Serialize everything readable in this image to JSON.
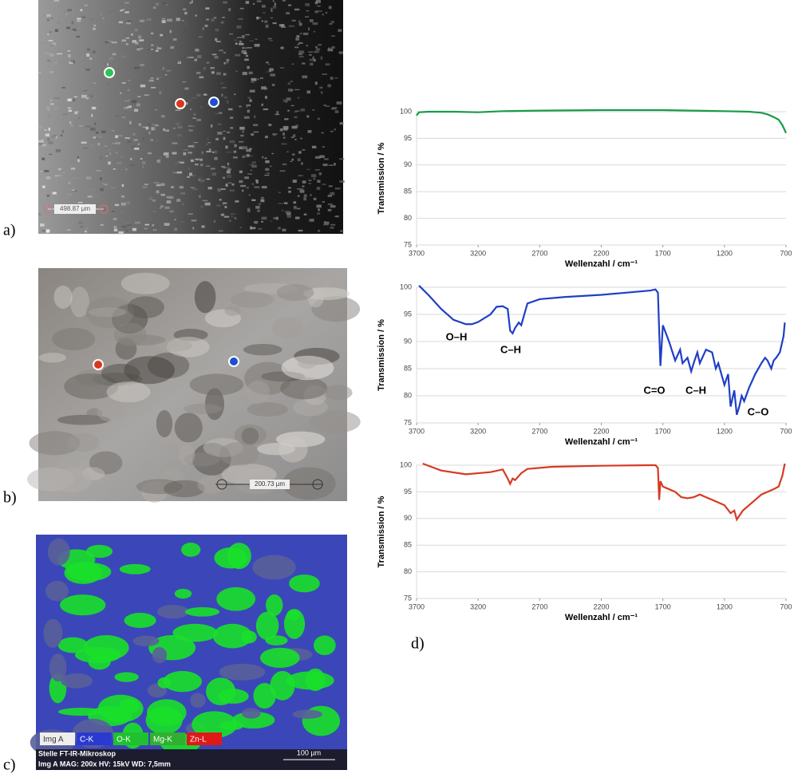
{
  "panel_labels": {
    "a": "a)",
    "b": "b)",
    "c": "c)",
    "d": "d)"
  },
  "images": {
    "a": {
      "scale_label": "498.87 µm"
    },
    "b": {
      "scale_label": "200.73 µm"
    },
    "c": {
      "legend": [
        "Img A",
        "C-K",
        "O-K",
        "Mg-K",
        "Zn-L"
      ],
      "footer_title": "Stelle FT-IR-Mikroskop",
      "footer_info": "Img A  MAG: 200x  HV: 15kV  WD: 7,5mm",
      "scale_label": "100 µm"
    }
  },
  "chart_data": [
    {
      "type": "line",
      "xlabel": "Wellenzahl  / cm⁻¹",
      "ylabel": "Transmission / %",
      "x": [
        3700,
        3680,
        3600,
        3400,
        3200,
        3000,
        2700,
        2200,
        1700,
        1200,
        1000,
        900,
        850,
        800,
        760,
        730,
        710,
        700
      ],
      "series": [
        {
          "color": "#1a9b4a",
          "values": [
            99.3,
            99.9,
            100,
            100,
            99.9,
            100.1,
            100.2,
            100.3,
            100.3,
            100.1,
            100,
            99.8,
            99.5,
            99,
            98.5,
            97.5,
            96.5,
            96
          ]
        }
      ],
      "xlim": [
        3700,
        700
      ],
      "xticks": [
        3700,
        3200,
        2700,
        2200,
        1700,
        1200,
        700
      ],
      "ylim": [
        75,
        100
      ],
      "yticks": [
        75,
        80,
        85,
        90,
        95,
        100
      ],
      "grid": true
    },
    {
      "type": "line",
      "xlabel": "Wellenzahl  / cm⁻¹",
      "ylabel": "Transmission / %",
      "x": [
        3680,
        3600,
        3500,
        3400,
        3300,
        3250,
        3200,
        3100,
        3050,
        3000,
        2960,
        2940,
        2920,
        2900,
        2870,
        2850,
        2800,
        2700,
        2500,
        2200,
        2000,
        1800,
        1760,
        1740,
        1730,
        1720,
        1700,
        1650,
        1600,
        1560,
        1540,
        1500,
        1470,
        1450,
        1420,
        1400,
        1380,
        1350,
        1300,
        1270,
        1250,
        1200,
        1170,
        1150,
        1120,
        1100,
        1080,
        1060,
        1040,
        1000,
        950,
        900,
        870,
        850,
        820,
        800,
        780,
        750,
        720,
        710
      ],
      "series": [
        {
          "color": "#1f3fc6",
          "values": [
            100.3,
            98.5,
            96,
            94,
            93.2,
            93.2,
            93.6,
            95,
            96.4,
            96.5,
            96,
            92,
            91.5,
            92.5,
            93.5,
            93,
            97,
            97.8,
            98.2,
            98.6,
            99,
            99.4,
            99.6,
            99,
            92,
            85.5,
            93,
            90,
            86.5,
            88.5,
            86,
            87,
            84.5,
            86,
            88,
            86,
            87,
            88.5,
            88,
            85,
            86,
            82,
            84,
            78,
            81,
            76.5,
            78,
            80,
            79,
            81.5,
            84,
            86,
            87,
            86.5,
            85,
            86.5,
            87,
            88,
            91,
            93.5
          ]
        }
      ],
      "annotations": [
        "O–H",
        "C–H",
        "C=O",
        "C–H",
        "C–O"
      ],
      "xlim": [
        3700,
        700
      ],
      "xticks": [
        3700,
        3200,
        2700,
        2200,
        1700,
        1200,
        700
      ],
      "ylim": [
        75,
        100
      ],
      "yticks": [
        75,
        80,
        85,
        90,
        95,
        100
      ],
      "grid": true
    },
    {
      "type": "line",
      "xlabel": "Wellenzahl  / cm⁻¹",
      "ylabel": "Transmission / %",
      "x": [
        3650,
        3500,
        3300,
        3100,
        3000,
        2960,
        2940,
        2920,
        2900,
        2850,
        2800,
        2600,
        2200,
        1800,
        1760,
        1740,
        1730,
        1720,
        1700,
        1650,
        1600,
        1550,
        1500,
        1450,
        1400,
        1350,
        1300,
        1250,
        1200,
        1150,
        1120,
        1100,
        1080,
        1050,
        1000,
        950,
        900,
        850,
        800,
        760,
        730,
        710
      ],
      "series": [
        {
          "color": "#d63a22",
          "values": [
            100.3,
            99,
            98.3,
            98.7,
            99.2,
            97.5,
            96.5,
            97.5,
            97.2,
            98.5,
            99.3,
            99.7,
            99.9,
            100,
            100,
            99.5,
            93.5,
            97,
            96,
            95.5,
            95,
            94,
            93.8,
            94,
            94.5,
            94,
            93.5,
            93,
            92.5,
            91,
            91.5,
            89.8,
            90.5,
            91.5,
            92.5,
            93.5,
            94.5,
            95,
            95.5,
            96,
            98,
            100.3
          ]
        }
      ],
      "xlim": [
        3700,
        700
      ],
      "xticks": [
        3700,
        3200,
        2700,
        2200,
        1700,
        1200,
        700
      ],
      "ylim": [
        75,
        100
      ],
      "yticks": [
        75,
        80,
        85,
        90,
        95,
        100
      ],
      "grid": true
    }
  ]
}
